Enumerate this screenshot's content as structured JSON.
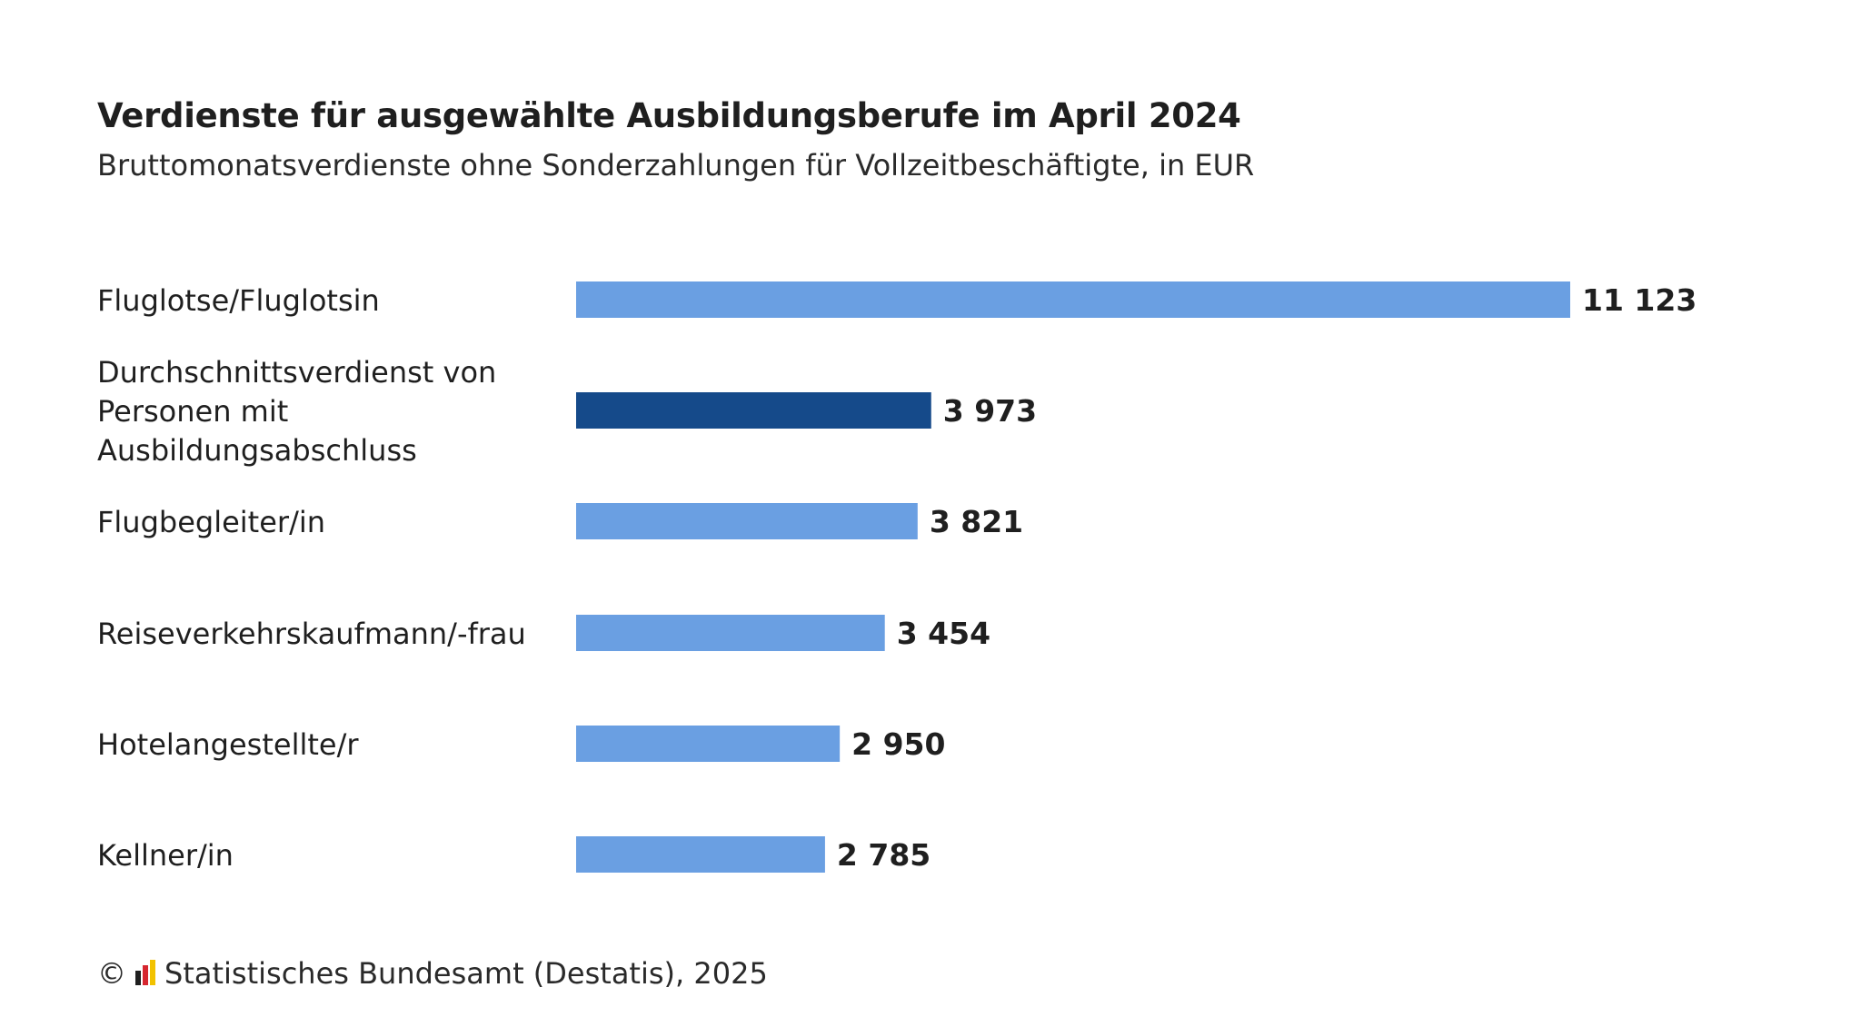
{
  "chart_data": {
    "type": "bar",
    "orientation": "horizontal",
    "title": "Verdienste für ausgewählte Ausbildungsberufe im April 2024",
    "subtitle": "Bruttomonatsverdienste ohne Sonderzahlungen für Vollzeitbeschäftigte, in EUR",
    "categories": [
      "Fluglotse/Fluglotsin",
      "Durchschnittsverdienst von Personen mit Ausbildungsabschluss",
      "Flugbegleiter/in",
      "Reiseverkehrskaufmann/-frau",
      "Hotelangestellte/r",
      "Kellner/in"
    ],
    "category_lines": [
      [
        "Fluglotse/Fluglotsin"
      ],
      [
        "Durchschnittsverdienst von",
        "Personen mit",
        "Ausbildungsabschluss"
      ],
      [
        "Flugbegleiter/in"
      ],
      [
        "Reiseverkehrskaufmann/-frau"
      ],
      [
        "Hotelangestellte/r"
      ],
      [
        "Kellner/in"
      ]
    ],
    "values": [
      11123,
      3973,
      3821,
      3454,
      2950,
      2785
    ],
    "value_labels": [
      "11 123",
      "3 973",
      "3 821",
      "3 454",
      "2 950",
      "2 785"
    ],
    "highlight_index": 1,
    "colors": {
      "bar": "#6a9fe2",
      "highlight": "#154a8a",
      "label": "#1f1f1f",
      "value": "#1f1f1f"
    },
    "xlim": [
      0,
      11123
    ],
    "grid": false,
    "legend": "none"
  },
  "footer": {
    "copyright_symbol": "©",
    "source": "Statistisches Bundesamt (Destatis), 2025",
    "logo_colors": [
      "#1f1f1f",
      "#d6262f",
      "#f2c200"
    ]
  }
}
